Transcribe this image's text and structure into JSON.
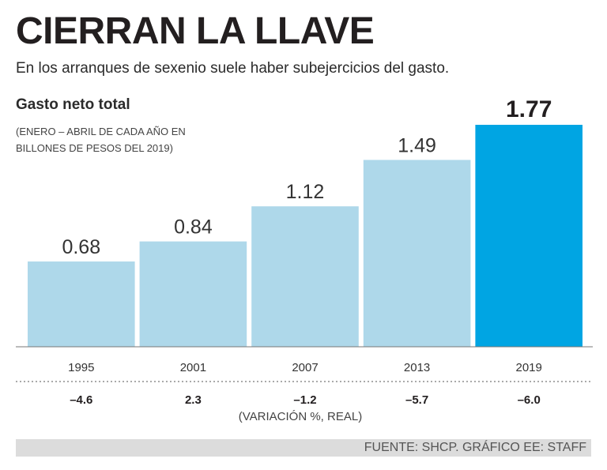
{
  "title": "CIERRAN LA LLAVE",
  "subtitle": "En los arranques de sexenio suele haber subejercicios del gasto.",
  "source": "FUENTE: SHCP. GRÁFICO EE: STAFF",
  "colors": {
    "bar": "#aed8ea",
    "highlight": "#00a5e3",
    "baseline": "#777777"
  },
  "chart_data": {
    "type": "bar",
    "title": "Gasto neto total",
    "note": "(ENERO – ABRIL DE CADA AÑO EN BILLONES DE PESOS DEL 2019)",
    "categories": [
      "1995",
      "2001",
      "2007",
      "2013",
      "2019"
    ],
    "values": [
      0.68,
      0.84,
      1.12,
      1.49,
      1.77
    ],
    "value_labels": [
      "0.68",
      "0.84",
      "1.12",
      "1.49",
      "1.77"
    ],
    "highlight_category": "2019",
    "ylim": [
      0,
      1.77
    ],
    "secondary_row": {
      "label": "(VARIACIÓN %, REAL)",
      "values": [
        "–4.6",
        "2.3",
        "–1.2",
        "–5.7",
        "–6.0"
      ]
    },
    "grid": false
  }
}
